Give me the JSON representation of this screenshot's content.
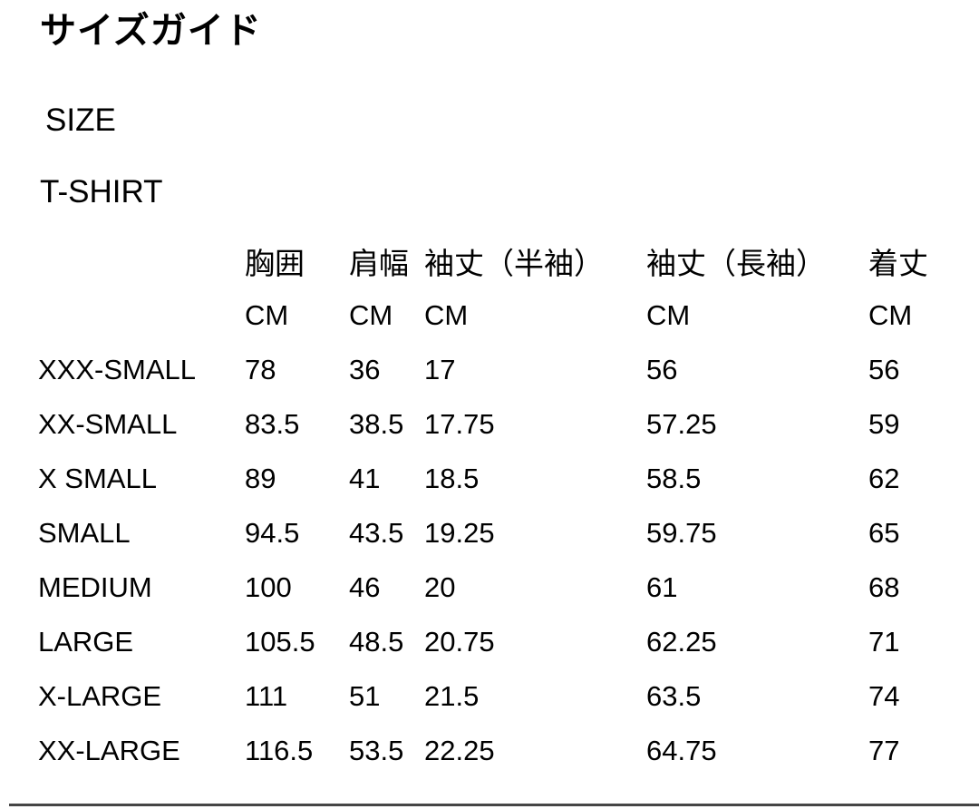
{
  "page": {
    "title": "サイズガイド",
    "category_label": "SIZE",
    "product_label": "T-SHIRT"
  },
  "size_table": {
    "unit_label": "CM",
    "columns": [
      "胸囲",
      "肩幅",
      "袖丈（半袖）",
      "袖丈（長袖）",
      "着丈"
    ],
    "rows": [
      {
        "size": "XXX-SMALL",
        "values": [
          "78",
          "36",
          "17",
          "56",
          "56"
        ]
      },
      {
        "size": "XX-SMALL",
        "values": [
          "83.5",
          "38.5",
          "17.75",
          "57.25",
          "59"
        ]
      },
      {
        "size": "X SMALL",
        "values": [
          "89",
          "41",
          "18.5",
          "58.5",
          "62"
        ]
      },
      {
        "size": "SMALL",
        "values": [
          "94.5",
          "43.5",
          "19.25",
          "59.75",
          "65"
        ]
      },
      {
        "size": "MEDIUM",
        "values": [
          "100",
          "46",
          "20",
          "61",
          "68"
        ]
      },
      {
        "size": "LARGE",
        "values": [
          "105.5",
          "48.5",
          "20.75",
          "62.25",
          "71"
        ]
      },
      {
        "size": "X-LARGE",
        "values": [
          "111",
          "51",
          "21.5",
          "63.5",
          "74"
        ]
      },
      {
        "size": "XX-LARGE",
        "values": [
          "116.5",
          "53.5",
          "22.25",
          "64.75",
          "77"
        ]
      }
    ]
  },
  "colors": {
    "text": "#000000",
    "background": "#ffffff",
    "divider": "#454545"
  }
}
